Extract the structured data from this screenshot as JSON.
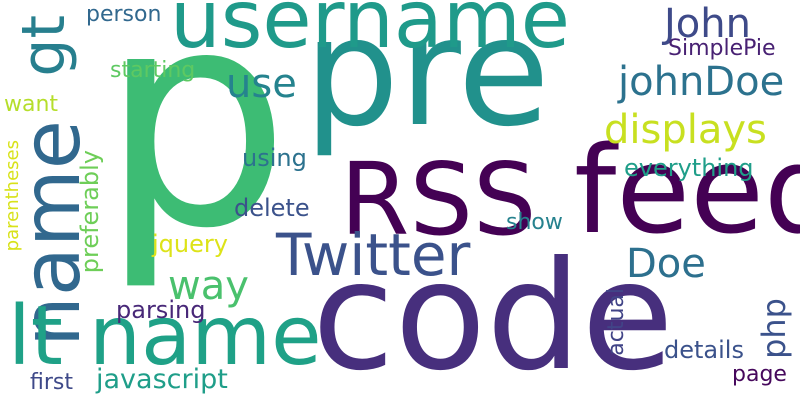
{
  "words": [
    {
      "text": "pre",
      "color": "#21918c"
    },
    {
      "text": "p",
      "color": "#3dbc74"
    },
    {
      "text": "code",
      "color": "#472f7d"
    },
    {
      "text": "username",
      "color": "#1f9a8a"
    },
    {
      "text": "RSS",
      "color": "#440154"
    },
    {
      "text": "feed",
      "color": "#440154"
    },
    {
      "text": "name",
      "color": "#31688e"
    },
    {
      "text": "Twitter",
      "color": "#3b528b"
    },
    {
      "text": "lt name",
      "color": "#1fa187"
    },
    {
      "text": "gt",
      "color": "#277f8e"
    },
    {
      "text": "name",
      "color": "#3e4989"
    },
    {
      "text": "displays",
      "color": "#c8e020"
    },
    {
      "text": "John",
      "color": "#3e4a89"
    },
    {
      "text": "johnDoe",
      "color": "#2c728e"
    },
    {
      "text": "use",
      "color": "#25838e"
    },
    {
      "text": "Doe",
      "color": "#2d708e"
    },
    {
      "text": "way",
      "color": "#4ac16d"
    },
    {
      "text": "jquery",
      "color": "#dde318"
    },
    {
      "text": "php",
      "color": "#3b528b"
    },
    {
      "text": "javascript",
      "color": "#1f9e89"
    },
    {
      "text": "preferably",
      "color": "#6ece58"
    },
    {
      "text": "delete",
      "color": "#3b528b"
    },
    {
      "text": "using",
      "color": "#2c728e"
    },
    {
      "text": "everything",
      "color": "#1f9e89"
    },
    {
      "text": "starting",
      "color": "#5ec962"
    },
    {
      "text": "person",
      "color": "#31688e"
    },
    {
      "text": "SimplePie",
      "color": "#482173"
    },
    {
      "text": "show",
      "color": "#26828e"
    },
    {
      "text": "parsing",
      "color": "#482878"
    },
    {
      "text": "details",
      "color": "#3b528b"
    },
    {
      "text": "actual",
      "color": "#414487"
    },
    {
      "text": "page",
      "color": "#46085c"
    },
    {
      "text": "first",
      "color": "#3e4989"
    },
    {
      "text": "want",
      "color": "#b5de2b"
    },
    {
      "text": "parentheses",
      "color": "#d8e219"
    }
  ]
}
